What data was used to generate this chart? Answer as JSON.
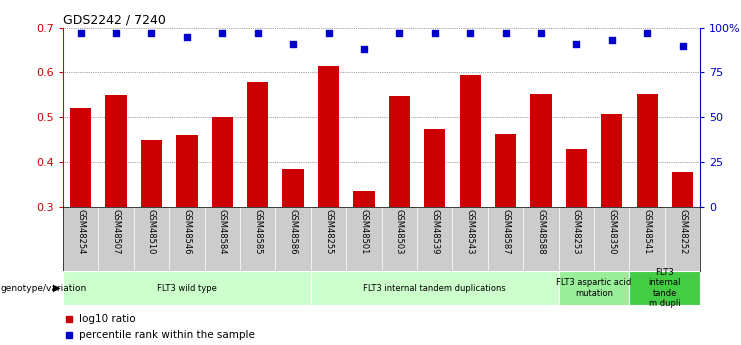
{
  "title": "GDS2242 / 7240",
  "samples": [
    "GSM48254",
    "GSM48507",
    "GSM48510",
    "GSM48546",
    "GSM48584",
    "GSM48585",
    "GSM48586",
    "GSM48255",
    "GSM48501",
    "GSM48503",
    "GSM48539",
    "GSM48543",
    "GSM48587",
    "GSM48588",
    "GSM48253",
    "GSM48350",
    "GSM48541",
    "GSM48252"
  ],
  "log10_ratio": [
    0.52,
    0.55,
    0.45,
    0.46,
    0.5,
    0.578,
    0.385,
    0.615,
    0.335,
    0.548,
    0.475,
    0.595,
    0.462,
    0.553,
    0.43,
    0.508,
    0.553,
    0.378
  ],
  "percentile_rank": [
    97,
    97,
    97,
    95,
    97,
    97,
    91,
    97,
    88,
    97,
    97,
    97,
    97,
    97,
    91,
    93,
    97,
    90
  ],
  "ylim_left": [
    0.3,
    0.7
  ],
  "ylim_right": [
    0,
    100
  ],
  "yticks_left": [
    0.3,
    0.4,
    0.5,
    0.6,
    0.7
  ],
  "yticks_right": [
    0,
    25,
    50,
    75,
    100
  ],
  "ytick_labels_right": [
    "0",
    "25",
    "50",
    "75",
    "100%"
  ],
  "bar_color": "#cc0000",
  "dot_color": "#0000cc",
  "bar_baseline": 0.3,
  "groups": [
    {
      "label": "FLT3 wild type",
      "start": 0,
      "end": 7,
      "color": "#ccffcc"
    },
    {
      "label": "FLT3 internal tandem duplications",
      "start": 7,
      "end": 14,
      "color": "#ccffcc"
    },
    {
      "label": "FLT3 aspartic acid\nmutation",
      "start": 14,
      "end": 16,
      "color": "#99ee99"
    },
    {
      "label": "FLT3\ninternal\ntande\nm dupli",
      "start": 16,
      "end": 18,
      "color": "#44cc44"
    }
  ],
  "group_label_prefix": "genotype/variation",
  "legend_bar_label": "log10 ratio",
  "legend_dot_label": "percentile rank within the sample",
  "background_color": "#ffffff",
  "tick_bg_color": "#cccccc"
}
